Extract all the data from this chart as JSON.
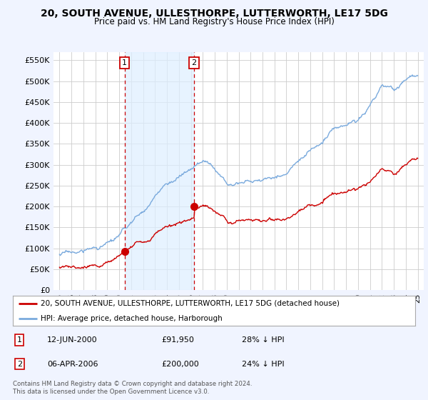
{
  "title": "20, SOUTH AVENUE, ULLESTHORPE, LUTTERWORTH, LE17 5DG",
  "subtitle": "Price paid vs. HM Land Registry's House Price Index (HPI)",
  "ylabel_ticks": [
    0,
    50000,
    100000,
    150000,
    200000,
    250000,
    300000,
    350000,
    400000,
    450000,
    500000,
    550000
  ],
  "ylim": [
    0,
    570000
  ],
  "xlim_start": 1994.5,
  "xlim_end": 2025.5,
  "transaction1": {
    "date_num": 2000.45,
    "price": 91950,
    "label": "1",
    "date_str": "12-JUN-2000",
    "price_str": "£91,950",
    "pct_str": "28% ↓ HPI"
  },
  "transaction2": {
    "date_num": 2006.27,
    "price": 200000,
    "label": "2",
    "date_str": "06-APR-2006",
    "price_str": "£200,000",
    "pct_str": "24% ↓ HPI"
  },
  "legend_line1": "20, SOUTH AVENUE, ULLESTHORPE, LUTTERWORTH, LE17 5DG (detached house)",
  "legend_line2": "HPI: Average price, detached house, Harborough",
  "footnote": "Contains HM Land Registry data © Crown copyright and database right 2024.\nThis data is licensed under the Open Government Licence v3.0.",
  "red_color": "#cc0000",
  "blue_color": "#7aaadd",
  "shade_color": "#ddeeff",
  "background_color": "#f0f4ff",
  "plot_bg": "#ffffff",
  "grid_color": "#cccccc"
}
